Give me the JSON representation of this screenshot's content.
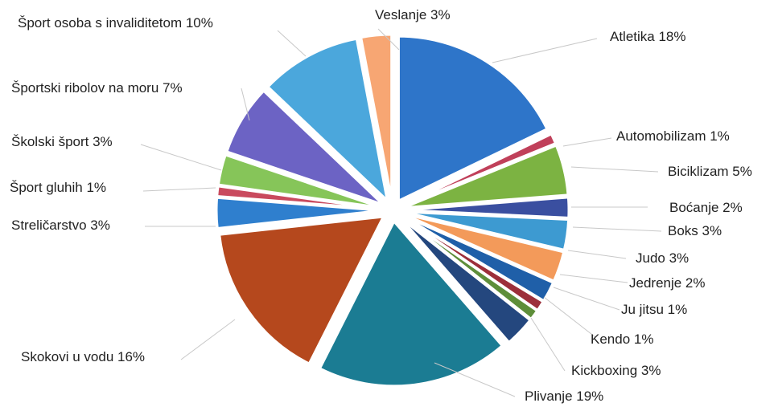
{
  "chart_data": {
    "type": "pie",
    "start_angle_deg": 0,
    "direction": "clockwise",
    "slices": [
      {
        "label": "Atletika 18%",
        "value": 18,
        "color": "#2e75c9"
      },
      {
        "label": "Automobilizam 1%",
        "value": 1,
        "color": "#c0405a"
      },
      {
        "label": "Biciklizam 5%",
        "value": 5,
        "color": "#7cb342"
      },
      {
        "label": "Boćanje 2%",
        "value": 2,
        "color": "#3a4fa0"
      },
      {
        "label": "Boks 3%",
        "value": 3,
        "color": "#3d9ad1"
      },
      {
        "label": "Judo 3%",
        "value": 3,
        "color": "#f39a5a"
      },
      {
        "label": "Jedrenje 2%",
        "value": 2,
        "color": "#1f5fa8"
      },
      {
        "label": "Ju jitsu 1%",
        "value": 1,
        "color": "#9c2f3a"
      },
      {
        "label": "Kendo 1%",
        "value": 1,
        "color": "#5e8e3a"
      },
      {
        "label": "Kickboxing 3%",
        "value": 3,
        "color": "#24477e"
      },
      {
        "label": "Plivanje 19%",
        "value": 19,
        "color": "#1b7c93"
      },
      {
        "label": "Skokovi u vodu 16%",
        "value": 16,
        "color": "#b5481d"
      },
      {
        "label": "Streličarstvo 3%",
        "value": 3,
        "color": "#2f7fce"
      },
      {
        "label": "Šport gluhih 1%",
        "value": 1,
        "color": "#c94a5e"
      },
      {
        "label": "Školski šport 3%",
        "value": 3,
        "color": "#86c559"
      },
      {
        "label": "Športski ribolov na moru 7%",
        "value": 7,
        "color": "#6c63c4"
      },
      {
        "label": "Šport osoba s invaliditetom 10%",
        "value": 10,
        "color": "#4ba7dc"
      },
      {
        "label": "Veslanje 3%",
        "value": 3,
        "color": "#f7a673"
      }
    ]
  }
}
